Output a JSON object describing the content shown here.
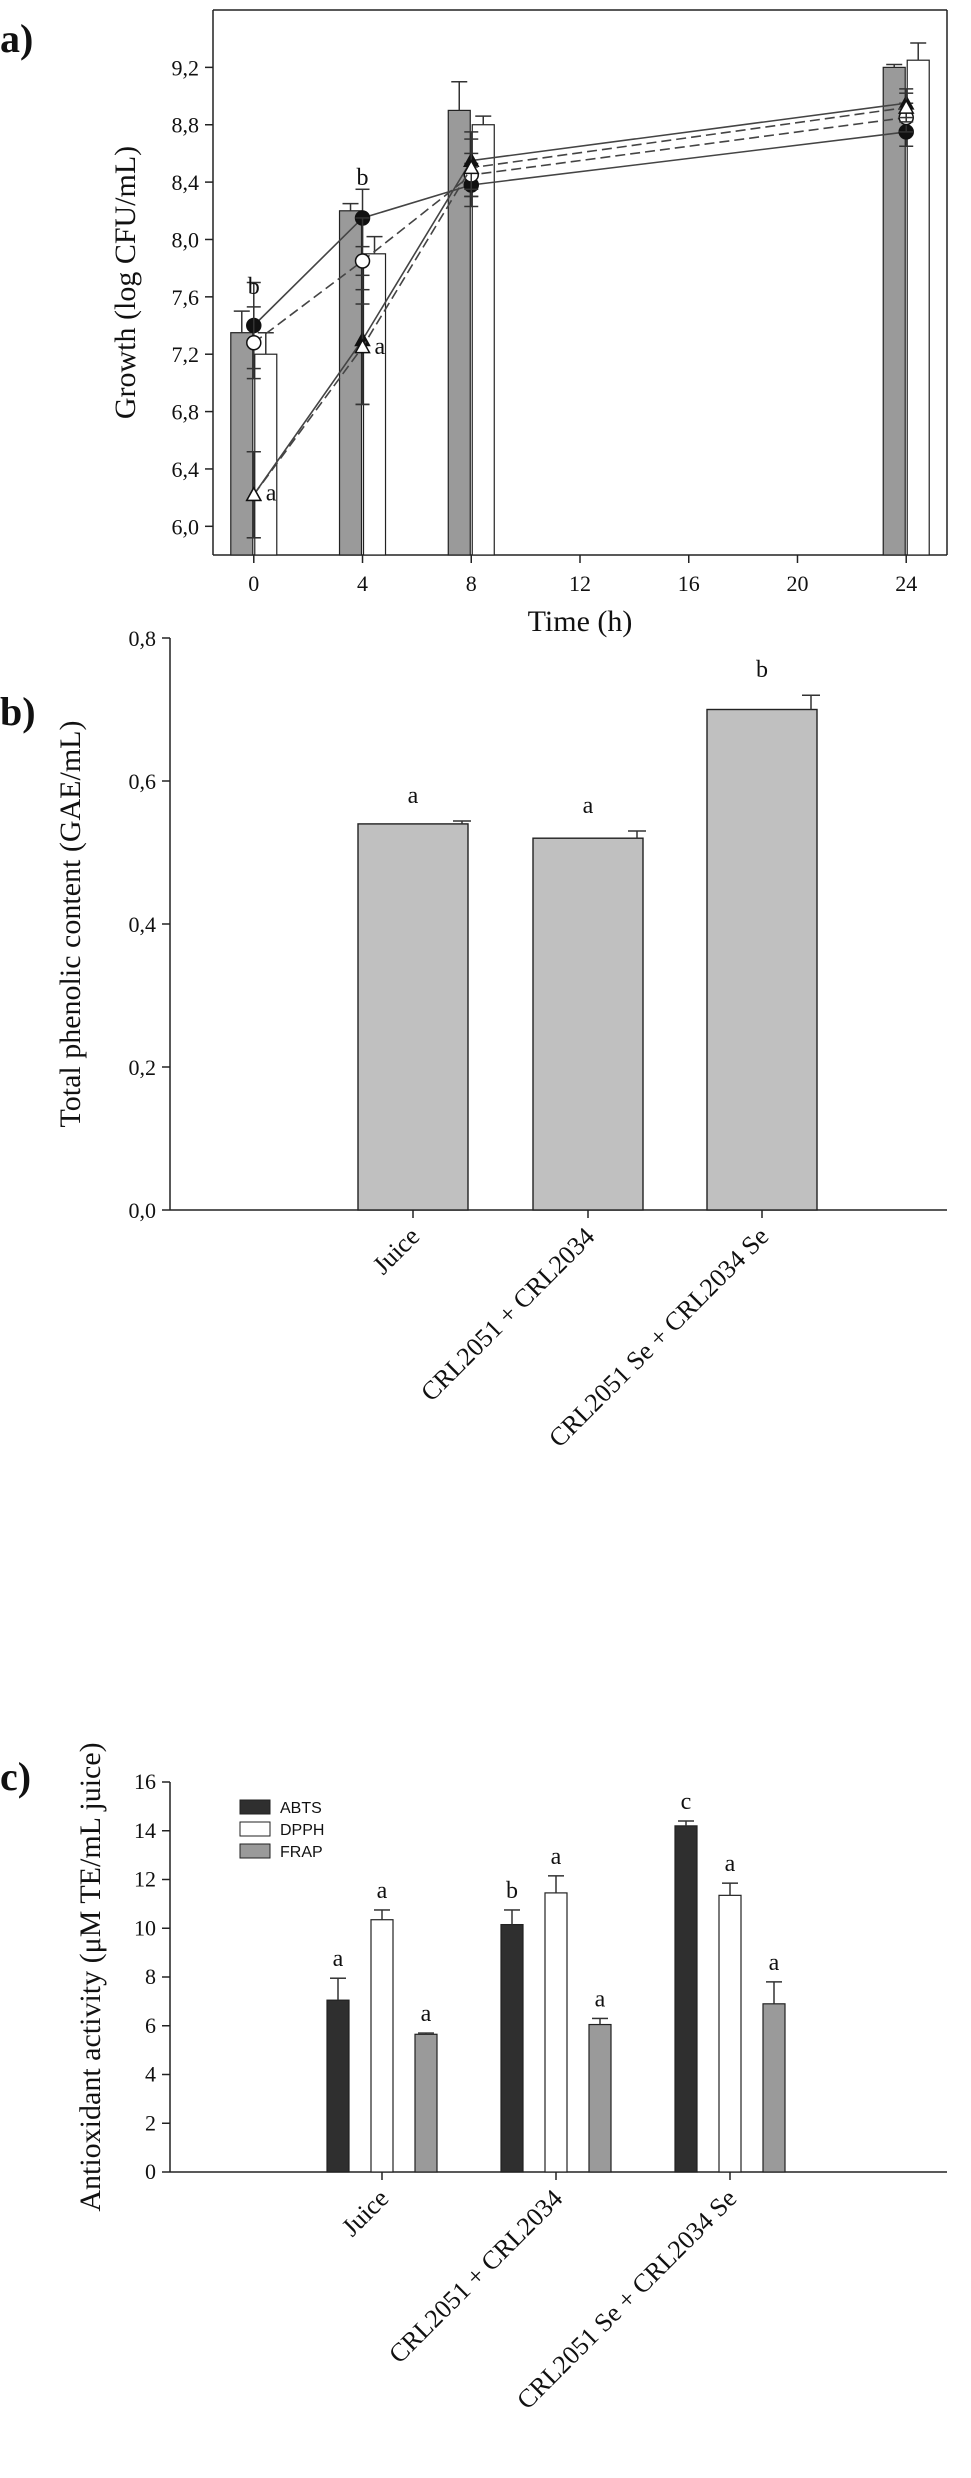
{
  "panel_labels": [
    "a)",
    "b)",
    "c)"
  ],
  "chart_data": [
    {
      "type": "bar",
      "panel": "a)",
      "xlabel": "Time (h)",
      "ylabel": "Growth (log CFU/mL)",
      "xticks": [
        "0",
        "4",
        "8",
        "12",
        "16",
        "20",
        "24"
      ],
      "yticks": [
        "6,0",
        "6,4",
        "6,8",
        "7,2",
        "7,6",
        "8,0",
        "8,4",
        "8,8",
        "9,2"
      ],
      "xlim": [
        -1.5,
        25.5
      ],
      "ylim": [
        5.8,
        9.6
      ],
      "bar_groups": [
        {
          "x": 0,
          "values": [
            7.35,
            7.2
          ],
          "errors": [
            0.15,
            0.15
          ]
        },
        {
          "x": 4,
          "values": [
            8.2,
            7.9
          ],
          "errors": [
            0.05,
            0.12
          ]
        },
        {
          "x": 8,
          "values": [
            8.9,
            8.8
          ],
          "errors": [
            0.2,
            0.06
          ]
        },
        {
          "x": 24,
          "values": [
            9.2,
            9.25
          ],
          "errors": [
            0.02,
            0.12
          ]
        }
      ],
      "line_series": [
        {
          "marker": "filled-circle",
          "style": "solid",
          "x": [
            0,
            4,
            8,
            24
          ],
          "y": [
            7.4,
            8.15,
            8.38,
            8.75
          ],
          "errors": [
            0.3,
            0.2,
            0.15,
            0.1
          ]
        },
        {
          "marker": "open-circle",
          "style": "dashed",
          "x": [
            0,
            4,
            8,
            24
          ],
          "y": [
            7.28,
            7.85,
            8.45,
            8.85
          ],
          "errors": [
            0.25,
            0.3,
            0.15,
            0.1
          ]
        },
        {
          "marker": "filled-triangle",
          "style": "solid",
          "x": [
            0,
            4,
            8,
            24
          ],
          "y": [
            6.22,
            7.3,
            8.55,
            8.95
          ],
          "errors": [
            0.3,
            0.45,
            0.2,
            0.1
          ]
        },
        {
          "marker": "open-triangle",
          "style": "dashed",
          "x": [
            0,
            4,
            8,
            24
          ],
          "y": [
            6.22,
            7.25,
            8.5,
            8.92
          ],
          "errors": [
            0.3,
            0.4,
            0.2,
            0.1
          ]
        }
      ],
      "annotations": [
        {
          "x": 0,
          "y": 7.62,
          "text": "b"
        },
        {
          "x": 4,
          "y": 8.38,
          "text": "b"
        },
        {
          "x": 0,
          "y": 6.18,
          "text": "a",
          "dx": 12
        },
        {
          "x": 4,
          "y": 7.2,
          "text": "a",
          "dx": 12
        }
      ]
    },
    {
      "type": "bar",
      "panel": "b)",
      "xlabel": "",
      "ylabel": "Total phenolic content (GAE/mL)",
      "categories": [
        "Juice",
        "CRL2051 + CRL2034",
        "CRL2051 Se + CRL2034 Se"
      ],
      "values": [
        0.54,
        0.52,
        0.7
      ],
      "errors": [
        0.004,
        0.01,
        0.02
      ],
      "significance": [
        "a",
        "a",
        "b"
      ],
      "yticks": [
        "0,0",
        "0,2",
        "0,4",
        "0,6",
        "0,8"
      ],
      "ylim": [
        0,
        0.8
      ]
    },
    {
      "type": "bar",
      "panel": "c)",
      "xlabel": "",
      "ylabel": "Antioxidant activity (μM TE/mL juice)",
      "categories": [
        "Juice",
        "CRL2051 + CRL2034",
        "CRL2051 Se + CRL2034 Se"
      ],
      "series": [
        {
          "name": "ABTS",
          "values": [
            7.05,
            10.15,
            14.2
          ],
          "errors": [
            0.9,
            0.6,
            0.2
          ],
          "significance": [
            "a",
            "b",
            "c"
          ]
        },
        {
          "name": "DPPH",
          "values": [
            10.35,
            11.45,
            11.35
          ],
          "errors": [
            0.4,
            0.7,
            0.5
          ],
          "significance": [
            "a",
            "a",
            "a"
          ]
        },
        {
          "name": "FRAP",
          "values": [
            5.65,
            6.05,
            6.9
          ],
          "errors": [
            0.05,
            0.25,
            0.9
          ],
          "significance": [
            "a",
            "a",
            "a"
          ]
        }
      ],
      "yticks": [
        "0",
        "2",
        "4",
        "6",
        "8",
        "10",
        "12",
        "14",
        "16"
      ],
      "ylim": [
        0,
        16
      ],
      "legend": "top-left"
    }
  ],
  "colors": {
    "bar_gray": "#9a9a9a",
    "bar_light": "#c0c0c0",
    "bar_white": "#ffffff",
    "bar_dark": "#2f2f2f",
    "axis": "#222222"
  }
}
